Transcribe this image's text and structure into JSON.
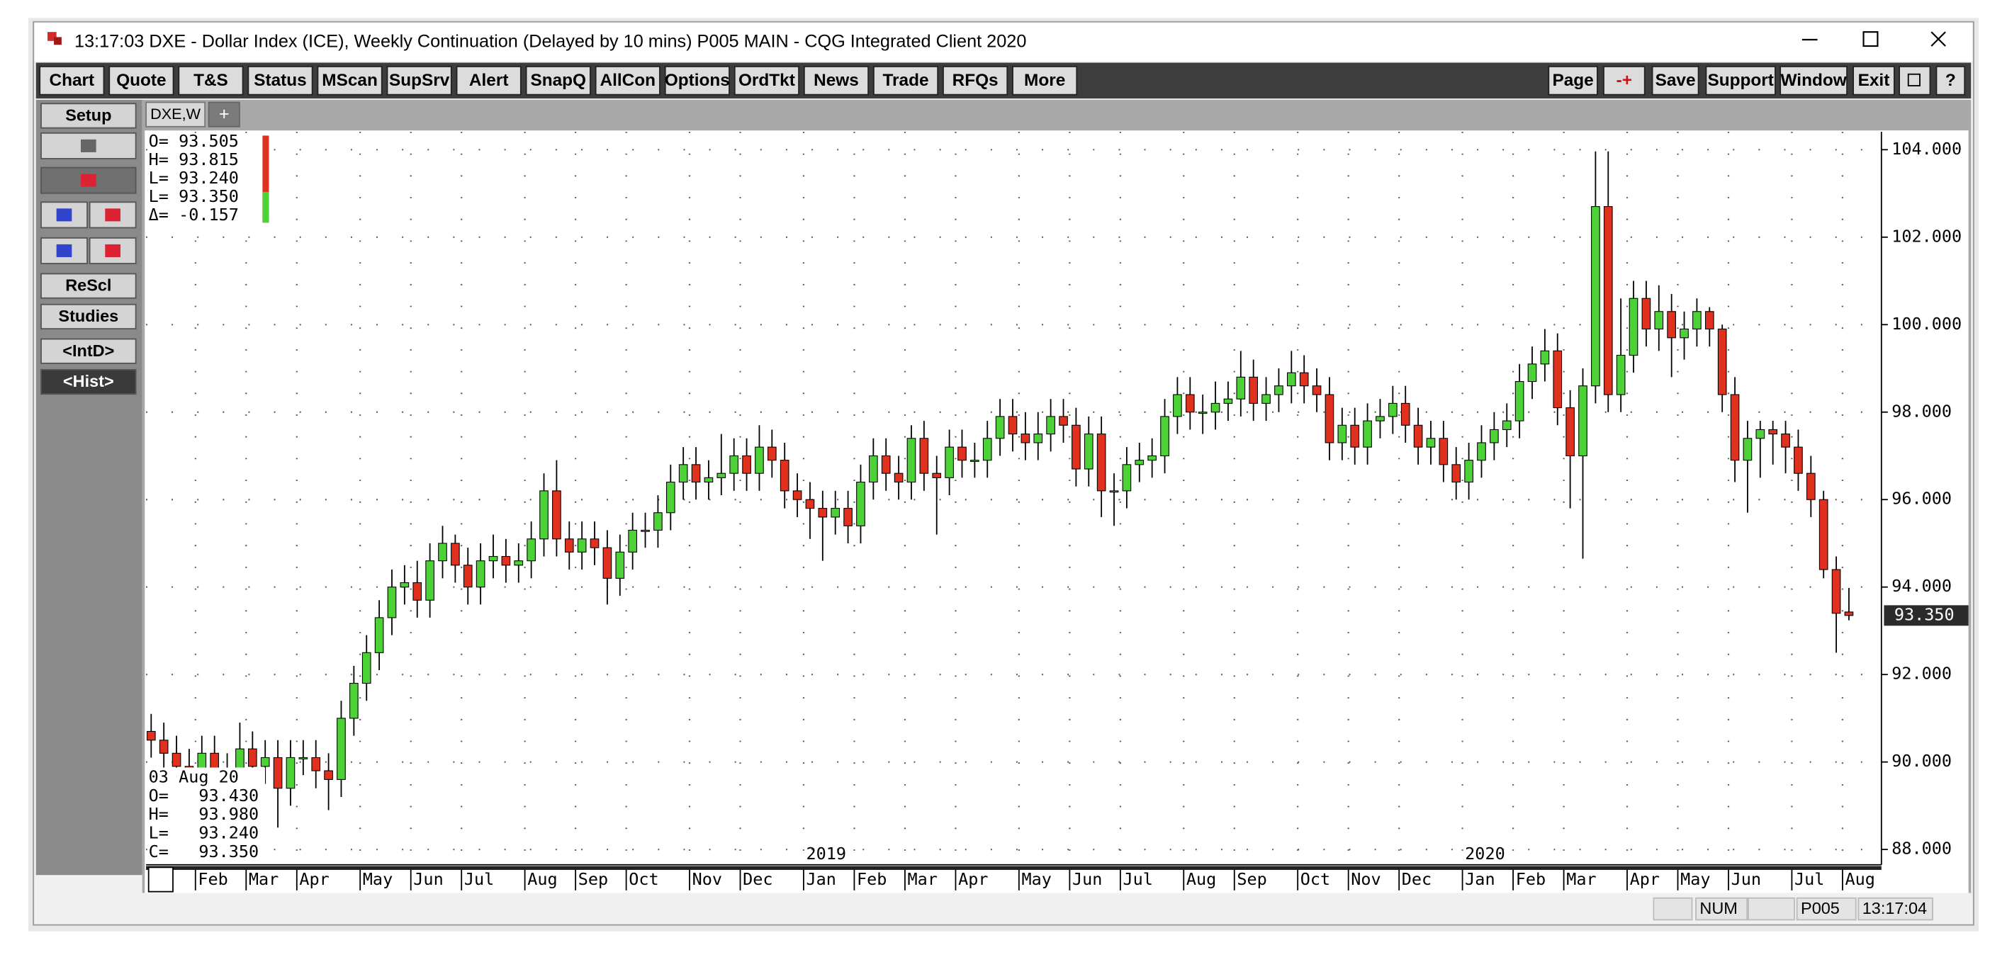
{
  "window": {
    "title": "13:17:03  DXE - Dollar Index (ICE), Weekly Continuation (Delayed by 10 mins)   P005 MAIN - CQG Integrated Client 2020"
  },
  "toolbar": {
    "left": [
      "Chart",
      "Quote",
      "T&S",
      "Status",
      "MScan",
      "SupSrv",
      "Alert",
      "SnapQ",
      "AllCon",
      "Options",
      "OrdTkt",
      "News",
      "Trade",
      "RFQs",
      "More"
    ],
    "right": [
      "Page",
      "-+",
      "Save",
      "Support",
      "Window",
      "Exit",
      "?"
    ]
  },
  "side_panel": [
    "Setup",
    "ReScl",
    "Studies",
    "<IntD>",
    "<Hist>"
  ],
  "tab": {
    "label": "DXE,W",
    "add": "+"
  },
  "readout_top": [
    "O= 93.505",
    "H= 93.815",
    "L= 93.240",
    "L= 93.350",
    "Δ= -0.157"
  ],
  "readout_bottom": [
    "03 Aug 20",
    "O=   93.430",
    "H=   93.980",
    "L=   93.240",
    "C=   93.350"
  ],
  "chart_data": {
    "type": "candlestick",
    "up_color": "#4cd137",
    "down_color": "#e0301e",
    "grid": true,
    "categories": [
      null,
      null,
      null,
      null,
      "Feb",
      null,
      null,
      null,
      "Mar",
      null,
      null,
      null,
      "Apr",
      null,
      null,
      null,
      null,
      "May",
      null,
      null,
      null,
      "Jun",
      null,
      null,
      null,
      "Jul",
      null,
      null,
      null,
      null,
      "Aug",
      null,
      null,
      null,
      "Sep",
      null,
      null,
      null,
      "Oct",
      null,
      null,
      null,
      null,
      "Nov",
      null,
      null,
      null,
      "Dec",
      null,
      null,
      null,
      null,
      "Jan",
      null,
      null,
      null,
      "Feb",
      null,
      null,
      null,
      "Mar",
      null,
      null,
      null,
      "Apr",
      null,
      null,
      null,
      null,
      "May",
      null,
      null,
      null,
      "Jun",
      null,
      null,
      null,
      "Jul",
      null,
      null,
      null,
      null,
      "Aug",
      null,
      null,
      null,
      "Sep",
      null,
      null,
      null,
      null,
      "Oct",
      null,
      null,
      null,
      "Nov",
      null,
      null,
      null,
      "Dec",
      null,
      null,
      null,
      null,
      "Jan",
      null,
      null,
      null,
      "Feb",
      null,
      null,
      null,
      "Mar",
      null,
      null,
      null,
      null,
      "Apr",
      null,
      null,
      null,
      "May",
      null,
      null,
      null,
      "Jun",
      null,
      null,
      null,
      null,
      "Jul",
      null,
      null,
      null,
      "Aug"
    ],
    "year_labels": [
      null,
      null,
      null,
      null,
      null,
      null,
      null,
      null,
      null,
      null,
      null,
      null,
      null,
      null,
      null,
      null,
      null,
      null,
      null,
      null,
      null,
      null,
      null,
      null,
      null,
      null,
      null,
      null,
      null,
      null,
      null,
      null,
      null,
      null,
      null,
      null,
      null,
      null,
      null,
      null,
      null,
      null,
      null,
      null,
      null,
      null,
      null,
      null,
      null,
      null,
      null,
      null,
      "2019",
      null,
      null,
      null,
      null,
      null,
      null,
      null,
      null,
      null,
      null,
      null,
      null,
      null,
      null,
      null,
      null,
      null,
      null,
      null,
      null,
      null,
      null,
      null,
      null,
      null,
      null,
      null,
      null,
      null,
      null,
      null,
      null,
      null,
      null,
      null,
      null,
      null,
      null,
      null,
      null,
      null,
      null,
      null,
      null,
      null,
      null,
      null,
      null,
      null,
      null,
      null,
      "2020",
      null,
      null,
      null,
      null,
      null,
      null,
      null,
      null,
      null,
      null,
      null,
      null,
      null,
      null,
      null,
      null,
      null,
      null,
      null,
      null,
      null,
      null,
      null,
      null,
      null,
      null,
      null,
      null,
      null,
      null
    ],
    "open": [
      90.7,
      90.5,
      90.2,
      89.9,
      89.6,
      90.2,
      89.1,
      89.8,
      90.3,
      89.9,
      90.1,
      89.4,
      90.1,
      90.1,
      89.8,
      89.6,
      91.0,
      91.8,
      92.5,
      93.3,
      94.0,
      94.1,
      93.7,
      94.6,
      95.0,
      94.5,
      94.0,
      94.6,
      94.7,
      94.5,
      94.6,
      95.1,
      96.2,
      95.1,
      94.8,
      95.1,
      94.9,
      94.2,
      94.8,
      95.3,
      95.3,
      95.7,
      96.4,
      96.8,
      96.4,
      96.5,
      96.6,
      97.0,
      96.6,
      97.2,
      96.9,
      96.2,
      96.0,
      95.8,
      95.6,
      95.8,
      95.4,
      96.4,
      97.0,
      96.6,
      96.4,
      97.4,
      96.6,
      96.5,
      97.2,
      96.9,
      96.9,
      97.4,
      97.9,
      97.5,
      97.3,
      97.5,
      97.9,
      97.7,
      96.7,
      97.5,
      96.2,
      96.2,
      96.8,
      96.9,
      97.0,
      97.9,
      98.4,
      98.0,
      98.0,
      98.2,
      98.3,
      98.8,
      98.2,
      98.4,
      98.6,
      98.9,
      98.6,
      98.4,
      97.3,
      97.7,
      97.2,
      97.8,
      97.9,
      98.2,
      97.7,
      97.2,
      97.4,
      96.8,
      96.4,
      96.9,
      97.3,
      97.6,
      97.8,
      98.7,
      99.1,
      99.4,
      98.1,
      97.0,
      98.6,
      102.7,
      98.4,
      99.3,
      100.6,
      99.9,
      100.3,
      99.7,
      99.9,
      100.3,
      99.9,
      98.4,
      96.9,
      97.4,
      97.6,
      97.5,
      97.2,
      96.6,
      96.0,
      94.4,
      93.43
    ],
    "high": [
      91.1,
      90.9,
      90.6,
      90.3,
      90.6,
      90.6,
      90.2,
      90.9,
      90.7,
      90.5,
      90.5,
      90.5,
      90.5,
      90.5,
      90.2,
      91.4,
      92.2,
      92.9,
      93.7,
      94.4,
      94.5,
      94.6,
      95.0,
      95.4,
      95.2,
      94.9,
      95.0,
      95.2,
      95.1,
      95.0,
      95.5,
      96.6,
      96.9,
      95.5,
      95.5,
      95.5,
      95.3,
      95.2,
      95.7,
      95.7,
      96.1,
      96.8,
      97.2,
      97.2,
      96.9,
      97.5,
      97.4,
      97.4,
      97.7,
      97.6,
      97.3,
      96.6,
      96.4,
      96.2,
      96.2,
      96.2,
      96.8,
      97.4,
      97.4,
      97.0,
      97.7,
      97.8,
      97.0,
      97.6,
      97.6,
      97.3,
      97.8,
      98.3,
      98.3,
      98.0,
      98.0,
      98.3,
      98.3,
      98.1,
      97.9,
      97.9,
      96.6,
      97.2,
      97.3,
      97.4,
      98.3,
      98.8,
      98.8,
      98.4,
      98.7,
      98.7,
      99.4,
      99.2,
      98.8,
      99.0,
      99.4,
      99.3,
      99.0,
      98.8,
      98.1,
      98.1,
      98.2,
      98.3,
      98.6,
      98.6,
      98.1,
      97.8,
      97.8,
      97.2,
      97.3,
      97.7,
      98.0,
      98.2,
      99.1,
      99.5,
      99.9,
      99.8,
      98.5,
      99.0,
      103.96,
      103.96,
      100.6,
      101.0,
      101.0,
      100.9,
      100.7,
      100.3,
      100.6,
      100.4,
      100.0,
      98.8,
      97.8,
      97.8,
      97.8,
      97.8,
      97.6,
      97.0,
      96.2,
      94.7,
      93.98
    ],
    "low": [
      90.1,
      89.8,
      89.5,
      89.2,
      89.2,
      88.7,
      88.7,
      89.4,
      89.5,
      89.5,
      88.5,
      89.0,
      89.7,
      89.4,
      88.9,
      89.2,
      90.6,
      91.4,
      92.1,
      92.9,
      93.6,
      93.3,
      93.3,
      94.2,
      94.1,
      93.6,
      93.6,
      94.2,
      94.1,
      94.1,
      94.2,
      94.7,
      94.7,
      94.4,
      94.4,
      94.5,
      93.6,
      93.8,
      94.4,
      94.9,
      94.9,
      95.3,
      96.0,
      96.0,
      96.0,
      96.1,
      96.2,
      96.2,
      96.2,
      96.5,
      95.8,
      95.6,
      95.1,
      94.6,
      95.2,
      95.0,
      95.0,
      96.0,
      96.2,
      96.0,
      96.0,
      96.2,
      95.2,
      96.1,
      96.5,
      96.5,
      96.5,
      97.0,
      97.1,
      96.9,
      96.9,
      97.1,
      97.3,
      96.3,
      96.3,
      95.6,
      95.4,
      95.8,
      96.4,
      96.5,
      96.6,
      97.5,
      97.6,
      97.5,
      97.6,
      97.8,
      97.9,
      97.8,
      97.8,
      98.0,
      98.2,
      98.2,
      98.0,
      96.9,
      96.9,
      96.8,
      96.8,
      97.4,
      97.5,
      97.3,
      96.8,
      96.8,
      96.4,
      96.0,
      96.0,
      96.5,
      96.9,
      97.2,
      97.4,
      98.3,
      98.7,
      97.7,
      95.8,
      94.65,
      98.2,
      98.0,
      98.0,
      98.9,
      99.5,
      99.4,
      98.8,
      99.2,
      99.5,
      99.5,
      98.0,
      96.4,
      95.7,
      96.5,
      96.8,
      96.6,
      96.2,
      95.6,
      94.2,
      92.5,
      93.24
    ],
    "close": [
      90.5,
      90.2,
      89.9,
      89.6,
      90.2,
      89.1,
      89.8,
      90.3,
      89.9,
      90.1,
      89.4,
      90.1,
      90.1,
      89.8,
      89.6,
      91.0,
      91.8,
      92.5,
      93.3,
      94.0,
      94.1,
      93.7,
      94.6,
      95.0,
      94.5,
      94.0,
      94.6,
      94.7,
      94.5,
      94.6,
      95.1,
      96.2,
      95.1,
      94.8,
      95.1,
      94.9,
      94.2,
      94.8,
      95.3,
      95.3,
      95.7,
      96.4,
      96.8,
      96.4,
      96.5,
      96.6,
      97.0,
      96.6,
      97.2,
      96.9,
      96.2,
      96.0,
      95.8,
      95.6,
      95.8,
      95.4,
      96.4,
      97.0,
      96.6,
      96.4,
      97.4,
      96.6,
      96.5,
      97.2,
      96.9,
      96.9,
      97.4,
      97.9,
      97.5,
      97.3,
      97.5,
      97.9,
      97.7,
      96.7,
      97.5,
      96.2,
      96.2,
      96.8,
      96.9,
      97.0,
      97.9,
      98.4,
      98.0,
      98.0,
      98.2,
      98.3,
      98.8,
      98.2,
      98.4,
      98.6,
      98.9,
      98.6,
      98.4,
      97.3,
      97.7,
      97.2,
      97.8,
      97.9,
      98.2,
      97.7,
      97.2,
      97.4,
      96.8,
      96.4,
      96.9,
      97.3,
      97.6,
      97.8,
      98.7,
      99.1,
      99.4,
      98.1,
      97.0,
      98.6,
      102.7,
      98.4,
      99.3,
      100.6,
      99.9,
      100.3,
      99.7,
      99.9,
      100.3,
      99.9,
      98.4,
      96.9,
      97.4,
      97.6,
      97.5,
      97.2,
      96.6,
      96.0,
      94.4,
      93.4,
      93.35
    ],
    "last_price": {
      "value": 93.35,
      "label": "93.350"
    },
    "ylim": [
      87.65,
      104.41
    ],
    "yticks": [
      {
        "value": 88,
        "label": "88.000"
      },
      {
        "value": 90,
        "label": "90.000"
      },
      {
        "value": 92,
        "label": "92.000"
      },
      {
        "value": 94,
        "label": "94.000"
      },
      {
        "value": 96,
        "label": "96.000"
      },
      {
        "value": 98,
        "label": "98.000"
      },
      {
        "value": 100,
        "label": "100.000"
      },
      {
        "value": 102,
        "label": "102.000"
      },
      {
        "value": 104,
        "label": "104.000"
      }
    ]
  },
  "status_bar": [
    "NUM",
    "P005",
    "13:17:04"
  ]
}
